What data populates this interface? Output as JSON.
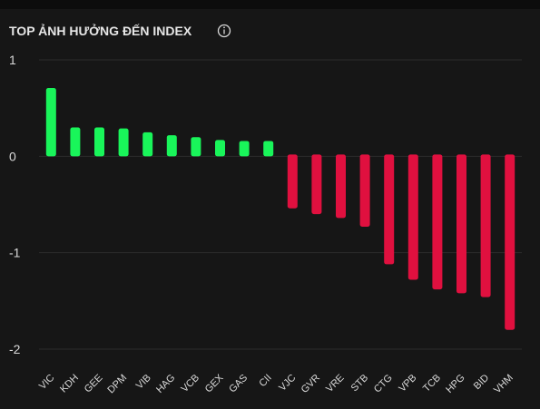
{
  "chart_data": {
    "type": "bar",
    "title": "TOP ẢNH HƯỞNG ĐẾN INDEX",
    "categories": [
      "VIC",
      "KDH",
      "GEE",
      "DPM",
      "VIB",
      "HAG",
      "VCB",
      "GEX",
      "GAS",
      "CII",
      "VJC",
      "GVR",
      "VRE",
      "STB",
      "CTG",
      "VPB",
      "TCB",
      "HPG",
      "BID",
      "VHM"
    ],
    "values": [
      0.69,
      0.28,
      0.28,
      0.27,
      0.23,
      0.2,
      0.18,
      0.15,
      0.14,
      0.14,
      -0.54,
      -0.6,
      -0.64,
      -0.73,
      -1.12,
      -1.28,
      -1.38,
      -1.42,
      -1.46,
      -1.8
    ],
    "positive_color": "#19f55a",
    "negative_color": "#e0103f",
    "ylim": [
      -2,
      1
    ],
    "yticks": [
      -2,
      -1,
      0,
      1
    ],
    "grid": true
  }
}
